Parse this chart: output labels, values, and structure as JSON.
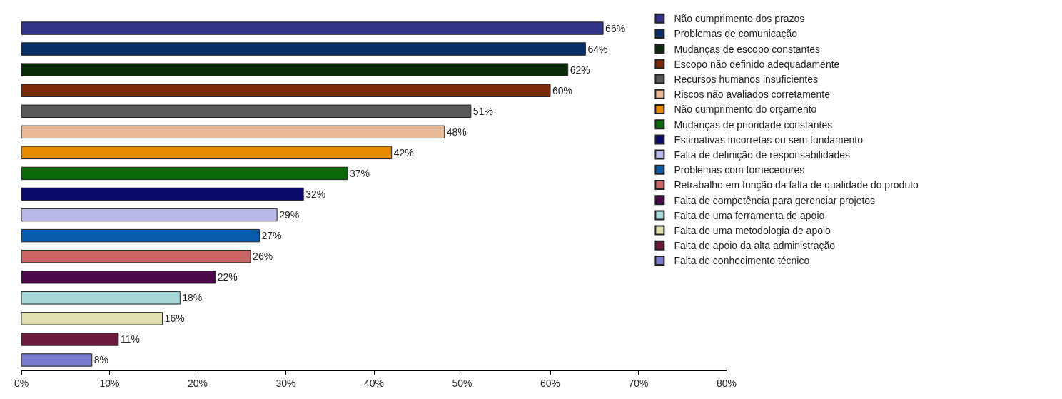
{
  "chart_data": {
    "type": "bar",
    "orientation": "horizontal",
    "categories": [
      null,
      null,
      null,
      null,
      null,
      null,
      null,
      null,
      null,
      null,
      null,
      null,
      null,
      null,
      null,
      null,
      null
    ],
    "series": [
      {
        "name": "Não cumprimento dos prazos",
        "color": "#333388",
        "values": [
          66,
          null,
          null,
          null,
          null,
          null,
          null,
          null,
          null,
          null,
          null,
          null,
          null,
          null,
          null,
          null,
          null
        ],
        "value_labels": [
          "66%",
          null,
          null,
          null,
          null,
          null,
          null,
          null,
          null,
          null,
          null,
          null,
          null,
          null,
          null,
          null,
          null
        ]
      },
      {
        "name": "Problemas de comunicação",
        "color": "#0a2f66",
        "values": [
          null,
          64,
          null,
          null,
          null,
          null,
          null,
          null,
          null,
          null,
          null,
          null,
          null,
          null,
          null,
          null,
          null
        ],
        "value_labels": [
          null,
          "64%",
          null,
          null,
          null,
          null,
          null,
          null,
          null,
          null,
          null,
          null,
          null,
          null,
          null,
          null,
          null
        ]
      },
      {
        "name": "Mudanças de escopo constantes",
        "color": "#0a2a0a",
        "values": [
          null,
          null,
          62,
          null,
          null,
          null,
          null,
          null,
          null,
          null,
          null,
          null,
          null,
          null,
          null,
          null,
          null
        ],
        "value_labels": [
          null,
          null,
          "62%",
          null,
          null,
          null,
          null,
          null,
          null,
          null,
          null,
          null,
          null,
          null,
          null,
          null,
          null
        ]
      },
      {
        "name": "Escopo não definido adequadamente",
        "color": "#7a2a0a",
        "values": [
          null,
          null,
          null,
          60,
          null,
          null,
          null,
          null,
          null,
          null,
          null,
          null,
          null,
          null,
          null,
          null,
          null
        ],
        "value_labels": [
          null,
          null,
          null,
          "60%",
          null,
          null,
          null,
          null,
          null,
          null,
          null,
          null,
          null,
          null,
          null,
          null,
          null
        ]
      },
      {
        "name": "Recursos humanos insuficientes",
        "color": "#595959",
        "values": [
          null,
          null,
          null,
          null,
          51,
          null,
          null,
          null,
          null,
          null,
          null,
          null,
          null,
          null,
          null,
          null,
          null
        ],
        "value_labels": [
          null,
          null,
          null,
          null,
          "51%",
          null,
          null,
          null,
          null,
          null,
          null,
          null,
          null,
          null,
          null,
          null,
          null
        ]
      },
      {
        "name": "Riscos não avaliados corretamente",
        "color": "#e8b994",
        "values": [
          null,
          null,
          null,
          null,
          null,
          48,
          null,
          null,
          null,
          null,
          null,
          null,
          null,
          null,
          null,
          null,
          null
        ],
        "value_labels": [
          null,
          null,
          null,
          null,
          null,
          "48%",
          null,
          null,
          null,
          null,
          null,
          null,
          null,
          null,
          null,
          null,
          null
        ]
      },
      {
        "name": "Não cumprimento do orçamento",
        "color": "#e88a00",
        "values": [
          null,
          null,
          null,
          null,
          null,
          null,
          42,
          null,
          null,
          null,
          null,
          null,
          null,
          null,
          null,
          null,
          null
        ],
        "value_labels": [
          null,
          null,
          null,
          null,
          null,
          null,
          "42%",
          null,
          null,
          null,
          null,
          null,
          null,
          null,
          null,
          null,
          null
        ]
      },
      {
        "name": "Mudanças de prioridade constantes",
        "color": "#0a6a0a",
        "values": [
          null,
          null,
          null,
          null,
          null,
          null,
          null,
          37,
          null,
          null,
          null,
          null,
          null,
          null,
          null,
          null,
          null
        ],
        "value_labels": [
          null,
          null,
          null,
          null,
          null,
          null,
          null,
          "37%",
          null,
          null,
          null,
          null,
          null,
          null,
          null,
          null,
          null
        ]
      },
      {
        "name": "Estimativas incorretas ou sem fundamento",
        "color": "#0a0a6a",
        "values": [
          null,
          null,
          null,
          null,
          null,
          null,
          null,
          null,
          32,
          null,
          null,
          null,
          null,
          null,
          null,
          null,
          null
        ],
        "value_labels": [
          null,
          null,
          null,
          null,
          null,
          null,
          null,
          null,
          "32%",
          null,
          null,
          null,
          null,
          null,
          null,
          null,
          null
        ]
      },
      {
        "name": "Falta de definição de responsabilidades",
        "color": "#b8b8e8",
        "values": [
          null,
          null,
          null,
          null,
          null,
          null,
          null,
          null,
          null,
          29,
          null,
          null,
          null,
          null,
          null,
          null,
          null
        ],
        "value_labels": [
          null,
          null,
          null,
          null,
          null,
          null,
          null,
          null,
          null,
          "29%",
          null,
          null,
          null,
          null,
          null,
          null,
          null
        ]
      },
      {
        "name": "Problemas com fornecedores",
        "color": "#0a5aaa",
        "values": [
          null,
          null,
          null,
          null,
          null,
          null,
          null,
          null,
          null,
          null,
          27,
          null,
          null,
          null,
          null,
          null,
          null
        ],
        "value_labels": [
          null,
          null,
          null,
          null,
          null,
          null,
          null,
          null,
          null,
          null,
          "27%",
          null,
          null,
          null,
          null,
          null,
          null
        ]
      },
      {
        "name": "Retrabalho em função da falta de qualidade do produto",
        "color": "#cc6666",
        "values": [
          null,
          null,
          null,
          null,
          null,
          null,
          null,
          null,
          null,
          null,
          null,
          26,
          null,
          null,
          null,
          null,
          null
        ],
        "value_labels": [
          null,
          null,
          null,
          null,
          null,
          null,
          null,
          null,
          null,
          null,
          null,
          "26%",
          null,
          null,
          null,
          null,
          null
        ]
      },
      {
        "name": "Falta de competência para gerenciar projetos",
        "color": "#4a0a4a",
        "values": [
          null,
          null,
          null,
          null,
          null,
          null,
          null,
          null,
          null,
          null,
          null,
          null,
          22,
          null,
          null,
          null,
          null
        ],
        "value_labels": [
          null,
          null,
          null,
          null,
          null,
          null,
          null,
          null,
          null,
          null,
          null,
          null,
          "22%",
          null,
          null,
          null,
          null
        ]
      },
      {
        "name": "Falta de uma ferramenta de apoio",
        "color": "#a8d8d8",
        "values": [
          null,
          null,
          null,
          null,
          null,
          null,
          null,
          null,
          null,
          null,
          null,
          null,
          null,
          18,
          null,
          null,
          null
        ],
        "value_labels": [
          null,
          null,
          null,
          null,
          null,
          null,
          null,
          null,
          null,
          null,
          null,
          null,
          null,
          "18%",
          null,
          null,
          null
        ]
      },
      {
        "name": "Falta de uma metodologia de apoio",
        "color": "#e0e0b0",
        "values": [
          null,
          null,
          null,
          null,
          null,
          null,
          null,
          null,
          null,
          null,
          null,
          null,
          null,
          null,
          16,
          null,
          null
        ],
        "value_labels": [
          null,
          null,
          null,
          null,
          null,
          null,
          null,
          null,
          null,
          null,
          null,
          null,
          null,
          null,
          "16%",
          null,
          null
        ]
      },
      {
        "name": "Falta de apoio da alta administração",
        "color": "#6a1a3a",
        "values": [
          null,
          null,
          null,
          null,
          null,
          null,
          null,
          null,
          null,
          null,
          null,
          null,
          null,
          null,
          null,
          11,
          null
        ],
        "value_labels": [
          null,
          null,
          null,
          null,
          null,
          null,
          null,
          null,
          null,
          null,
          null,
          null,
          null,
          null,
          null,
          "11%",
          null
        ]
      },
      {
        "name": "Falta de conhecimento técnico",
        "color": "#7a7acc",
        "values": [
          null,
          null,
          null,
          null,
          null,
          null,
          null,
          null,
          null,
          null,
          null,
          null,
          null,
          null,
          null,
          null,
          8
        ],
        "value_labels": [
          null,
          null,
          null,
          null,
          null,
          null,
          null,
          null,
          null,
          null,
          null,
          null,
          null,
          null,
          null,
          null,
          "8%"
        ]
      }
    ],
    "xlim": [
      0,
      80
    ],
    "xticks": [
      {
        "value": 0,
        "label": "0%"
      },
      {
        "value": 10,
        "label": "10%"
      },
      {
        "value": 20,
        "label": "20%"
      },
      {
        "value": 30,
        "label": "30%"
      },
      {
        "value": 40,
        "label": "40%"
      },
      {
        "value": 50,
        "label": "50%"
      },
      {
        "value": 60,
        "label": "60%"
      },
      {
        "value": 70,
        "label": "70%"
      },
      {
        "value": 80,
        "label": "80%"
      }
    ],
    "stacked": true,
    "legend": "top right",
    "tick_labels": "x"
  }
}
